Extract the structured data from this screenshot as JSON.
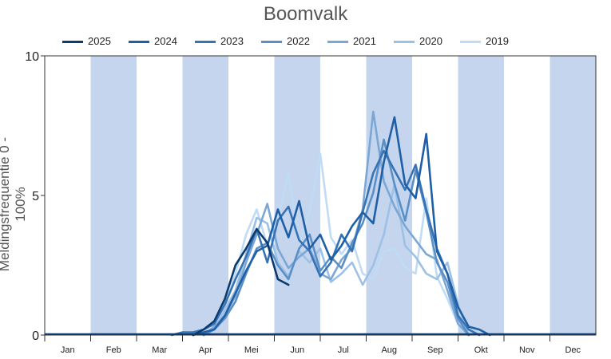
{
  "chart_data": {
    "type": "line",
    "title": "Boomvalk",
    "ylabel": "Meldingsfrequentie 0 - 100%",
    "xlabel": "",
    "ylim": [
      0,
      10
    ],
    "yticks": [
      "0",
      "5",
      "10"
    ],
    "months": [
      "Jan",
      "Feb",
      "Mar",
      "Apr",
      "Mei",
      "Jun",
      "Jul",
      "Aug",
      "Sep",
      "Okt",
      "Nov",
      "Dec"
    ],
    "shaded_months": [
      1,
      3,
      5,
      7,
      9,
      11
    ],
    "shade_color": "#c5d5ee",
    "x_unit": "week",
    "series": [
      {
        "name": "2025",
        "color": "#0b3a6e",
        "x": [
          14,
          15,
          16,
          17,
          18,
          19,
          20,
          21,
          22,
          23
        ],
        "values": [
          0,
          0.2,
          0.5,
          1.3,
          2.5,
          3.1,
          3.8,
          3.3,
          2.0,
          1.8
        ]
      },
      {
        "name": "2024",
        "color": "#1f5fa6",
        "x": [
          14,
          15,
          16,
          17,
          18,
          19,
          20,
          21,
          22,
          23,
          24,
          25,
          26,
          27,
          28,
          29,
          30,
          31,
          32,
          33,
          34,
          35,
          36,
          37,
          38,
          39,
          40,
          41,
          42
        ],
        "values": [
          0,
          0.1,
          0.2,
          0.7,
          1.5,
          2.3,
          3.0,
          3.2,
          4.5,
          3.5,
          4.8,
          3.1,
          3.6,
          2.7,
          3.2,
          3.9,
          4.4,
          4.0,
          6.2,
          7.8,
          5.4,
          4.9,
          7.2,
          3.0,
          2.2,
          1.0,
          0.3,
          0.2,
          0
        ]
      },
      {
        "name": "2023",
        "color": "#3673b5",
        "x": [
          12,
          13,
          14,
          15,
          16,
          17,
          18,
          19,
          20,
          21,
          22,
          23,
          24,
          25,
          26,
          27,
          28,
          29,
          30,
          31,
          32,
          33,
          34,
          35,
          36,
          37,
          38,
          39,
          40,
          41
        ],
        "values": [
          0,
          0.1,
          0.1,
          0.2,
          0.4,
          1.1,
          2.0,
          2.8,
          3.8,
          2.6,
          4.1,
          4.6,
          3.4,
          3.0,
          2.1,
          2.6,
          3.6,
          3.0,
          4.4,
          5.8,
          6.6,
          5.9,
          5.2,
          6.1,
          4.5,
          3.1,
          2.2,
          0.7,
          0.2,
          0
        ]
      },
      {
        "name": "2022",
        "color": "#5a8fc6",
        "x": [
          15,
          16,
          17,
          18,
          19,
          20,
          21,
          22,
          23,
          24,
          25,
          26,
          27,
          28,
          29,
          30,
          31,
          32,
          33,
          34,
          35,
          36,
          37,
          38,
          39,
          40
        ],
        "values": [
          0,
          0.2,
          0.6,
          1.2,
          2.2,
          3.1,
          3.3,
          2.5,
          2.0,
          3.1,
          3.6,
          2.3,
          2.8,
          2.4,
          3.3,
          4.0,
          5.1,
          7.0,
          5.4,
          4.1,
          5.9,
          4.4,
          2.6,
          1.9,
          0.6,
          0
        ]
      },
      {
        "name": "2021",
        "color": "#7aa7d6",
        "x": [
          15,
          16,
          17,
          18,
          19,
          20,
          21,
          22,
          23,
          24,
          25,
          26,
          27,
          28,
          29,
          30,
          31,
          32,
          33,
          34,
          35,
          36,
          37,
          38,
          39,
          40
        ],
        "values": [
          0,
          0.3,
          0.7,
          1.4,
          2.6,
          3.6,
          4.7,
          3.1,
          2.4,
          2.8,
          3.1,
          2.2,
          2.0,
          2.7,
          3.1,
          4.5,
          8.0,
          5.5,
          4.6,
          3.9,
          3.4,
          2.9,
          2.7,
          1.6,
          0.4,
          0
        ]
      },
      {
        "name": "2020",
        "color": "#9dc0e5",
        "x": [
          15,
          16,
          17,
          18,
          19,
          20,
          21,
          22,
          23,
          24,
          25,
          26,
          27,
          28,
          29,
          30,
          31,
          32,
          33,
          34,
          35,
          36,
          37,
          38,
          39,
          40
        ],
        "values": [
          0,
          0.2,
          0.9,
          1.6,
          2.9,
          4.2,
          4.0,
          2.6,
          2.1,
          3.0,
          2.6,
          3.1,
          1.9,
          2.2,
          2.6,
          1.8,
          2.5,
          3.6,
          5.4,
          3.2,
          2.8,
          2.2,
          2.0,
          2.6,
          1.1,
          0
        ]
      },
      {
        "name": "2019",
        "color": "#c0dbf5",
        "x": [
          15,
          16,
          17,
          18,
          19,
          20,
          21,
          22,
          23,
          24,
          25,
          26,
          27,
          28,
          29,
          30,
          31,
          32,
          33,
          34,
          35,
          36,
          37,
          38,
          39,
          40
        ],
        "values": [
          0,
          0.5,
          1.1,
          2.2,
          3.6,
          4.5,
          3.2,
          4.2,
          5.8,
          3.3,
          4.4,
          6.5,
          3.5,
          2.9,
          3.4,
          2.2,
          2.0,
          3.0,
          3.1,
          2.4,
          2.2,
          4.9,
          2.1,
          1.3,
          0.4,
          0
        ]
      }
    ]
  }
}
